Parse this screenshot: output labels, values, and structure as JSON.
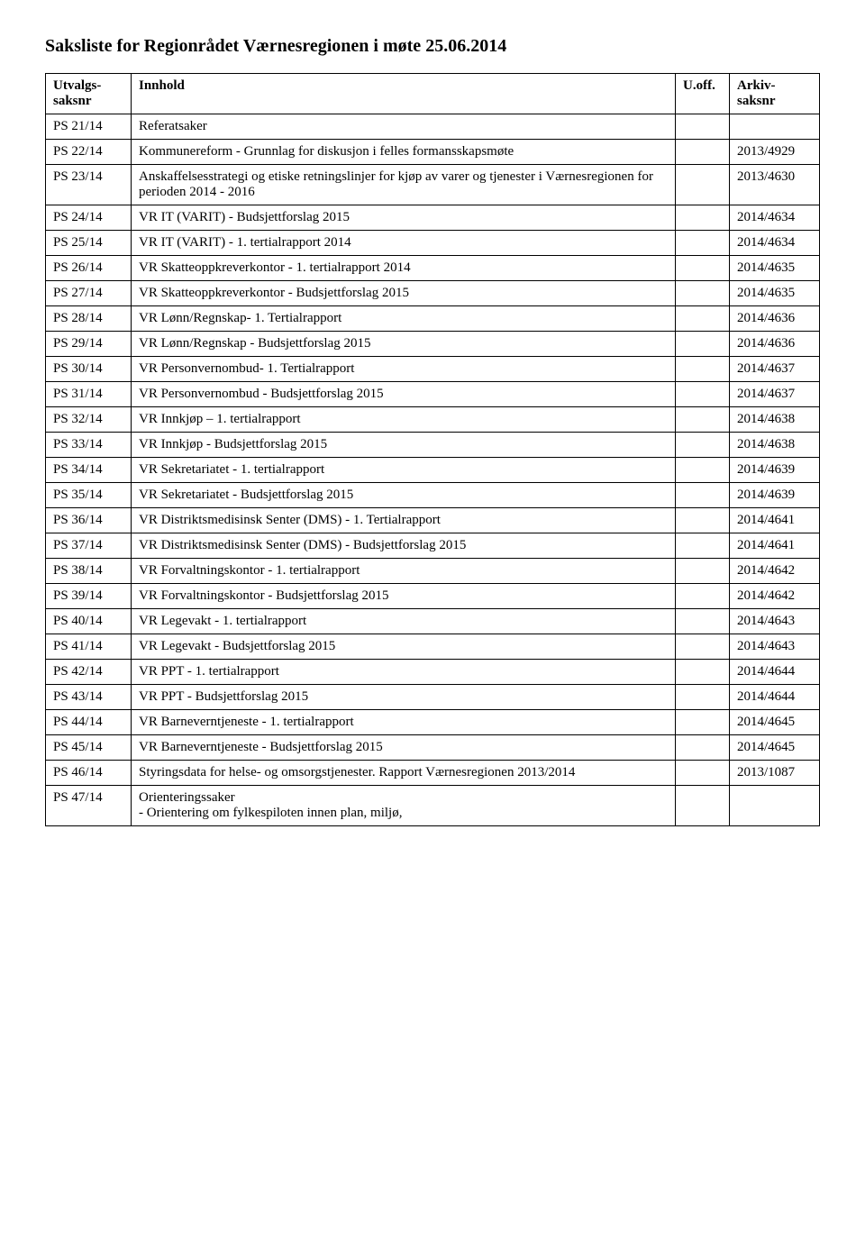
{
  "title": "Saksliste for Regionrådet Værnesregionen i møte 25.06.2014",
  "headers": {
    "col1": "Utvalgs-\nsaksnr",
    "col2": "Innhold",
    "col3": "U.off.",
    "col4": "Arkiv-\nsaksnr"
  },
  "rows": [
    {
      "saksnr": "PS 21/14",
      "innhold": "Referatsaker",
      "uoff": "",
      "arkiv": ""
    },
    {
      "saksnr": "PS 22/14",
      "innhold": "Kommunereform - Grunnlag for diskusjon i felles formansskapsmøte",
      "uoff": "",
      "arkiv": "2013/4929"
    },
    {
      "saksnr": "PS 23/14",
      "innhold": "Anskaffelsesstrategi og etiske retningslinjer for kjøp av varer og tjenester i Værnesregionen for perioden 2014 - 2016",
      "uoff": "",
      "arkiv": "2013/4630"
    },
    {
      "saksnr": "PS 24/14",
      "innhold": "VR IT (VARIT) - Budsjettforslag 2015",
      "uoff": "",
      "arkiv": "2014/4634"
    },
    {
      "saksnr": "PS 25/14",
      "innhold": "VR IT (VARIT) - 1. tertialrapport 2014",
      "uoff": "",
      "arkiv": "2014/4634"
    },
    {
      "saksnr": "PS 26/14",
      "innhold": "VR Skatteoppkreverkontor - 1. tertialrapport 2014",
      "uoff": "",
      "arkiv": "2014/4635"
    },
    {
      "saksnr": "PS 27/14",
      "innhold": "VR Skatteoppkreverkontor - Budsjettforslag 2015",
      "uoff": "",
      "arkiv": "2014/4635"
    },
    {
      "saksnr": "PS 28/14",
      "innhold": "VR Lønn/Regnskap- 1. Tertialrapport",
      "uoff": "",
      "arkiv": "2014/4636"
    },
    {
      "saksnr": "PS 29/14",
      "innhold": "VR Lønn/Regnskap -  Budsjettforslag 2015",
      "uoff": "",
      "arkiv": "2014/4636"
    },
    {
      "saksnr": "PS 30/14",
      "innhold": "VR Personvernombud- 1. Tertialrapport",
      "uoff": "",
      "arkiv": "2014/4637"
    },
    {
      "saksnr": "PS 31/14",
      "innhold": "VR Personvernombud - Budsjettforslag 2015",
      "uoff": "",
      "arkiv": "2014/4637"
    },
    {
      "saksnr": "PS 32/14",
      "innhold": "VR Innkjøp – 1. tertialrapport",
      "uoff": "",
      "arkiv": "2014/4638"
    },
    {
      "saksnr": "PS 33/14",
      "innhold": "VR Innkjøp -  Budsjettforslag 2015",
      "uoff": "",
      "arkiv": "2014/4638"
    },
    {
      "saksnr": "PS 34/14",
      "innhold": "VR Sekretariatet - 1. tertialrapport",
      "uoff": "",
      "arkiv": "2014/4639"
    },
    {
      "saksnr": "PS 35/14",
      "innhold": "VR Sekretariatet - Budsjettforslag 2015",
      "uoff": "",
      "arkiv": "2014/4639"
    },
    {
      "saksnr": "PS 36/14",
      "innhold": "VR Distriktsmedisinsk Senter (DMS) - 1. Tertialrapport",
      "uoff": "",
      "arkiv": "2014/4641"
    },
    {
      "saksnr": "PS 37/14",
      "innhold": "VR Distriktsmedisinsk Senter (DMS) -  Budsjettforslag 2015",
      "uoff": "",
      "arkiv": "2014/4641"
    },
    {
      "saksnr": "PS 38/14",
      "innhold": "VR Forvaltningskontor - 1. tertialrapport",
      "uoff": "",
      "arkiv": "2014/4642"
    },
    {
      "saksnr": "PS 39/14",
      "innhold": "VR Forvaltningskontor - Budsjettforslag 2015",
      "uoff": "",
      "arkiv": "2014/4642"
    },
    {
      "saksnr": "PS 40/14",
      "innhold": "VR Legevakt - 1. tertialrapport",
      "uoff": "",
      "arkiv": "2014/4643"
    },
    {
      "saksnr": "PS 41/14",
      "innhold": "VR Legevakt - Budsjettforslag 2015",
      "uoff": "",
      "arkiv": "2014/4643"
    },
    {
      "saksnr": "PS 42/14",
      "innhold": "VR PPT - 1. tertialrapport",
      "uoff": "",
      "arkiv": "2014/4644"
    },
    {
      "saksnr": "PS 43/14",
      "innhold": "VR PPT - Budsjettforslag 2015",
      "uoff": "",
      "arkiv": "2014/4644"
    },
    {
      "saksnr": "PS 44/14",
      "innhold": "VR Barneverntjeneste - 1. tertialrapport",
      "uoff": "",
      "arkiv": "2014/4645"
    },
    {
      "saksnr": "PS 45/14",
      "innhold": "VR Barneverntjeneste - Budsjettforslag 2015",
      "uoff": "",
      "arkiv": "2014/4645"
    },
    {
      "saksnr": "PS 46/14",
      "innhold": "Styringsdata for helse- og omsorgstjenester. Rapport Værnesregionen 2013/2014",
      "uoff": "",
      "arkiv": "2013/1087"
    },
    {
      "saksnr": "PS 47/14",
      "innhold": "Orienteringssaker\n-     Orientering om  fylkespiloten innen plan, miljø,",
      "uoff": "",
      "arkiv": ""
    }
  ]
}
